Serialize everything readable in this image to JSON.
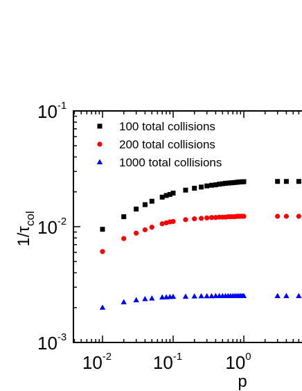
{
  "chart_data": {
    "type": "scatter",
    "xlabel": "p",
    "ylabel": "1/τ",
    "ylabel_subscript": "col",
    "x_scale": "log",
    "y_scale": "log",
    "xlim": [
      0.004,
      6
    ],
    "ylim": [
      0.001,
      0.1
    ],
    "x_tick_labels": [
      {
        "value": 0.01,
        "base": "10",
        "exp": "-2"
      },
      {
        "value": 0.1,
        "base": "10",
        "exp": "-1"
      },
      {
        "value": 1,
        "base": "10",
        "exp": "0"
      }
    ],
    "y_tick_labels": [
      {
        "value": 0.001,
        "base": "10",
        "exp": "-3"
      },
      {
        "value": 0.01,
        "base": "10",
        "exp": "-2"
      },
      {
        "value": 0.1,
        "base": "10",
        "exp": "-1"
      }
    ],
    "legend_position": "top-left",
    "x": [
      0.01,
      0.02,
      0.03,
      0.04,
      0.05,
      0.07,
      0.08,
      0.09,
      0.1,
      0.15,
      0.2,
      0.25,
      0.3,
      0.35,
      0.4,
      0.45,
      0.5,
      0.55,
      0.6,
      0.65,
      0.7,
      0.75,
      0.8,
      0.85,
      0.9,
      0.95,
      1.0,
      3.0,
      4.0,
      6.0
    ],
    "series": [
      {
        "name": "100  total collisions",
        "marker": "square",
        "color": "#000000",
        "values": [
          0.0095,
          0.0122,
          0.0142,
          0.0155,
          0.0166,
          0.018,
          0.0186,
          0.019,
          0.0195,
          0.0207,
          0.0215,
          0.022,
          0.0225,
          0.0228,
          0.023,
          0.0233,
          0.0235,
          0.0237,
          0.0238,
          0.0239,
          0.024,
          0.0241,
          0.0242,
          0.0243,
          0.0244,
          0.0244,
          0.0245,
          0.0246,
          0.0246,
          0.0246
        ]
      },
      {
        "name": "200  total collisions",
        "marker": "circle",
        "color": "#ff0000",
        "values": [
          0.0061,
          0.0079,
          0.0088,
          0.0094,
          0.0099,
          0.0106,
          0.0108,
          0.011,
          0.0111,
          0.0115,
          0.0117,
          0.0118,
          0.0119,
          0.012,
          0.012,
          0.0121,
          0.0121,
          0.0121,
          0.0122,
          0.0122,
          0.0122,
          0.0122,
          0.0123,
          0.0123,
          0.0123,
          0.0123,
          0.0123,
          0.0123,
          0.0123,
          0.0123
        ]
      },
      {
        "name": "1000 total collisions",
        "marker": "triangle",
        "color": "#0000ff",
        "values": [
          0.002,
          0.00223,
          0.00232,
          0.00237,
          0.0024,
          0.00245,
          0.00246,
          0.00247,
          0.00248,
          0.00249,
          0.0025,
          0.00251,
          0.00251,
          0.00251,
          0.00252,
          0.00252,
          0.00252,
          0.00252,
          0.00252,
          0.00252,
          0.00252,
          0.00252,
          0.00252,
          0.00252,
          0.00252,
          0.00252,
          0.00252,
          0.00252,
          0.00252,
          0.00252
        ]
      }
    ]
  }
}
